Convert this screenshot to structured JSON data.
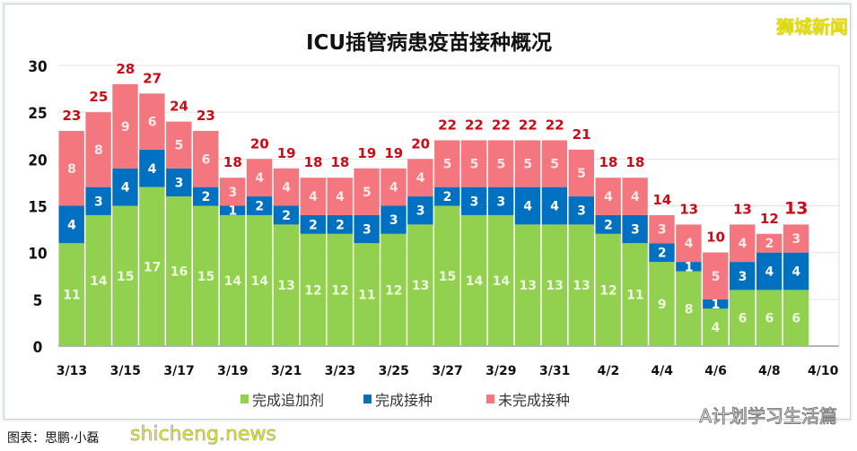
{
  "logo": "狮城新闻",
  "watermark_right": "A计划学习生活篇",
  "watermark_left": "shicheng.news",
  "credit": "图表：思鹏·小磊",
  "colors": {
    "booster": "#92d050",
    "completed": "#0070c0",
    "incomplete": "#f4777f",
    "total_label": "#cc0a14"
  },
  "chart_data": {
    "type": "bar",
    "stacked": true,
    "title": "ICU插管病患疫苗接种概况",
    "categories": [
      "3/13",
      "3/14",
      "3/15",
      "3/16",
      "3/17",
      "3/18",
      "3/19",
      "3/20",
      "3/21",
      "3/22",
      "3/23",
      "3/24",
      "3/25",
      "3/26",
      "3/27",
      "3/28",
      "3/29",
      "3/30",
      "3/31",
      "4/1",
      "4/2",
      "4/3",
      "4/4",
      "4/5",
      "4/6",
      "4/7",
      "4/8",
      "4/9"
    ],
    "x_tick_labels": [
      "3/13",
      "3/15",
      "3/17",
      "3/19",
      "3/21",
      "3/23",
      "3/25",
      "3/27",
      "3/29",
      "3/31",
      "4/2",
      "4/4",
      "4/6",
      "4/8",
      "4/10"
    ],
    "series": [
      {
        "name": "完成追加剂",
        "values": [
          11,
          14,
          15,
          17,
          16,
          15,
          14,
          14,
          13,
          12,
          12,
          11,
          12,
          13,
          15,
          14,
          14,
          13,
          13,
          13,
          12,
          11,
          9,
          8,
          4,
          6,
          6,
          6
        ]
      },
      {
        "name": "完成接种",
        "values": [
          4,
          3,
          4,
          4,
          3,
          2,
          1,
          2,
          2,
          2,
          2,
          3,
          3,
          3,
          2,
          3,
          3,
          4,
          4,
          3,
          2,
          3,
          2,
          1,
          1,
          3,
          4,
          4
        ]
      },
      {
        "name": "未完成接种",
        "values": [
          8,
          8,
          9,
          6,
          5,
          6,
          3,
          4,
          4,
          4,
          4,
          5,
          4,
          4,
          5,
          5,
          5,
          5,
          5,
          5,
          4,
          4,
          3,
          4,
          5,
          4,
          2,
          3
        ]
      }
    ],
    "totals": [
      23,
      25,
      28,
      27,
      24,
      23,
      18,
      20,
      19,
      18,
      18,
      19,
      19,
      20,
      22,
      22,
      22,
      22,
      22,
      21,
      18,
      18,
      14,
      13,
      10,
      13,
      12,
      13
    ],
    "ylim": [
      0,
      30
    ],
    "y_ticks": [
      0,
      5,
      10,
      15,
      20,
      25,
      30
    ],
    "grid": true,
    "legend": "bottom"
  }
}
